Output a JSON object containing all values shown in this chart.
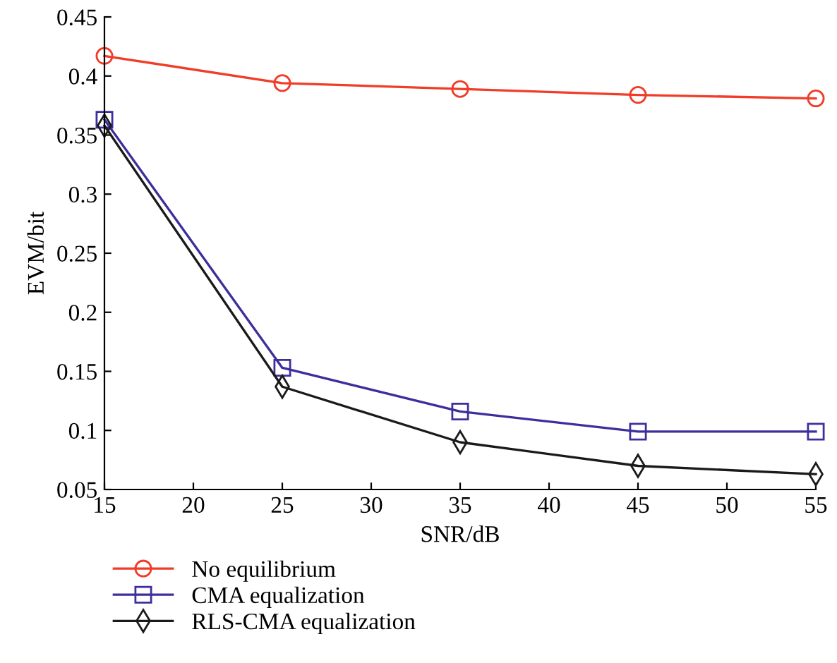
{
  "chart_data": {
    "type": "line",
    "xlabel": "SNR/dB",
    "ylabel": "EVM/bit",
    "x": [
      15,
      25,
      35,
      45,
      55
    ],
    "series": [
      {
        "name": "No equilibrium",
        "color": "#f03c28",
        "marker": "circle",
        "values": [
          0.417,
          0.394,
          0.389,
          0.384,
          0.381
        ]
      },
      {
        "name": "CMA equalization",
        "color": "#3c2f9c",
        "marker": "square",
        "values": [
          0.363,
          0.153,
          0.116,
          0.099,
          0.099
        ]
      },
      {
        "name": "RLS-CMA equalization",
        "color": "#1a1a1a",
        "marker": "diamond",
        "values": [
          0.358,
          0.137,
          0.09,
          0.07,
          0.063
        ]
      }
    ],
    "xlim": [
      15,
      55
    ],
    "xticks": [
      15,
      20,
      25,
      30,
      35,
      40,
      45,
      50,
      55
    ],
    "ylim": [
      0.05,
      0.45
    ],
    "yticks": [
      0.05,
      0.1,
      0.15,
      0.2,
      0.25,
      0.3,
      0.35,
      0.4,
      0.45
    ],
    "grid": false,
    "legend": "bottom",
    "line_style": "solid"
  }
}
